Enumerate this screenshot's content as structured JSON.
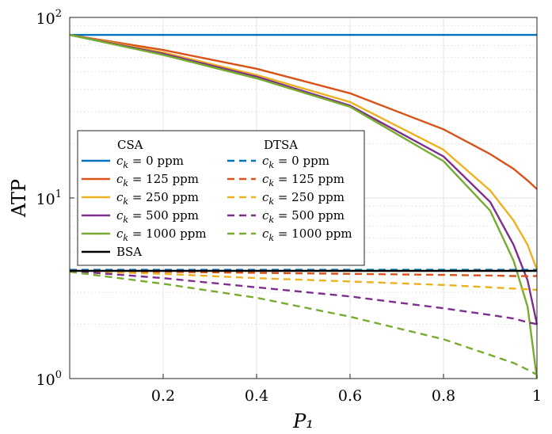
{
  "chart_data": {
    "type": "line",
    "xlabel": "P₁",
    "ylabel": "ATP",
    "xlim": [
      0,
      1
    ],
    "ylim": [
      1,
      100
    ],
    "yscale": "log",
    "grid": true,
    "legend_placement": "center-left",
    "xticks": [
      "0.2",
      "0.4",
      "0.6",
      "0.8",
      "1"
    ],
    "yticks": [
      {
        "base": "10",
        "exp": "0",
        "value": 1
      },
      {
        "base": "10",
        "exp": "1",
        "value": 10
      },
      {
        "base": "10",
        "exp": "2",
        "value": 100
      }
    ],
    "legend": {
      "col1_title": "CSA",
      "col2_title": "DTSA"
    },
    "x": [
      0,
      0.2,
      0.4,
      0.6,
      0.8,
      0.9,
      0.95,
      0.98,
      1.0
    ],
    "series": [
      {
        "name": "c_k = 0 ppm",
        "legend_label": "= 0 ppm",
        "group": "CSA",
        "color": "#0072BD",
        "dash": "solid",
        "y": [
          80,
          80,
          80,
          80,
          80,
          80,
          80,
          80,
          80
        ]
      },
      {
        "name": "c_k = 125 ppm",
        "legend_label": "= 125 ppm",
        "group": "CSA",
        "color": "#D95319",
        "dash": "solid",
        "y": [
          80,
          66,
          52,
          38,
          24,
          17.5,
          14.5,
          12.5,
          11.2
        ]
      },
      {
        "name": "c_k = 250 ppm",
        "legend_label": "= 250 ppm",
        "group": "CSA",
        "color": "#EDB120",
        "dash": "solid",
        "y": [
          80,
          64,
          48,
          34,
          18.5,
          11,
          7.5,
          5.5,
          4.0
        ]
      },
      {
        "name": "c_k = 500 ppm",
        "legend_label": "= 500 ppm",
        "group": "CSA",
        "color": "#7E2F8E",
        "dash": "solid",
        "y": [
          80,
          63,
          47,
          32.5,
          17,
          9.5,
          5.5,
          3.5,
          2.0
        ]
      },
      {
        "name": "c_k = 1000 ppm",
        "legend_label": "= 1000 ppm",
        "group": "CSA",
        "color": "#77AC30",
        "dash": "solid",
        "y": [
          80,
          62,
          46,
          32,
          16,
          8.5,
          4.5,
          2.5,
          1.0
        ]
      },
      {
        "name": "c_k = 0 ppm (DTSA)",
        "legend_label": "= 0 ppm",
        "group": "DTSA",
        "color": "#0072BD",
        "dash": "dashed",
        "y": [
          4.0,
          4.0,
          4.0,
          4.0,
          4.0,
          4.0,
          4.0,
          4.0,
          4.0
        ]
      },
      {
        "name": "c_k = 125 ppm (DTSA)",
        "legend_label": "= 125 ppm",
        "group": "DTSA",
        "color": "#D95319",
        "dash": "dashed",
        "y": [
          3.95,
          3.9,
          3.85,
          3.8,
          3.75,
          3.72,
          3.7,
          3.69,
          3.7
        ]
      },
      {
        "name": "c_k = 250 ppm (DTSA)",
        "legend_label": "= 250 ppm",
        "group": "DTSA",
        "color": "#EDB120",
        "dash": "dashed",
        "y": [
          3.95,
          3.8,
          3.6,
          3.45,
          3.3,
          3.2,
          3.15,
          3.12,
          3.1
        ]
      },
      {
        "name": "c_k = 500 ppm (DTSA)",
        "legend_label": "= 500 ppm",
        "group": "DTSA",
        "color": "#7E2F8E",
        "dash": "dashed",
        "y": [
          3.95,
          3.6,
          3.2,
          2.85,
          2.45,
          2.25,
          2.15,
          2.05,
          2.0
        ]
      },
      {
        "name": "c_k = 1000 ppm (DTSA)",
        "legend_label": "= 1000 ppm",
        "group": "DTSA",
        "color": "#77AC30",
        "dash": "dashed",
        "y": [
          3.9,
          3.35,
          2.8,
          2.2,
          1.65,
          1.35,
          1.22,
          1.12,
          1.05
        ]
      },
      {
        "name": "BSA",
        "legend_label": "BSA",
        "group": "BSA",
        "color": "#000000",
        "dash": "solid",
        "y": [
          3.95,
          3.95,
          3.95,
          3.95,
          3.95,
          3.95,
          3.95,
          3.95,
          3.95
        ]
      }
    ]
  }
}
